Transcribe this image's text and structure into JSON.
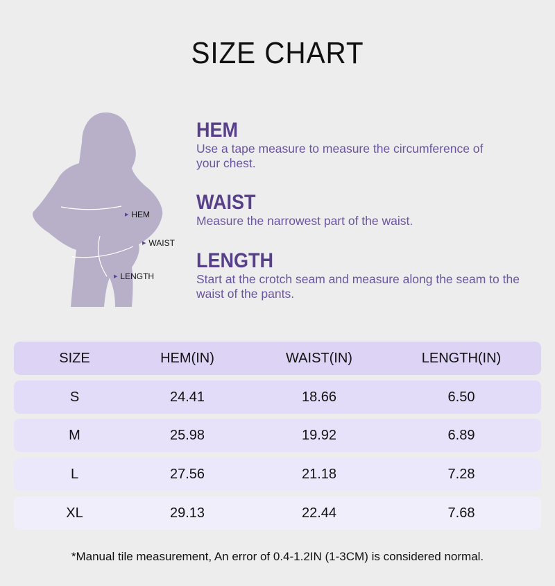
{
  "title": "SIZE CHART",
  "figure_labels": {
    "hem": "HEM",
    "waist": "WAIST",
    "length": "LENGTH"
  },
  "sections": [
    {
      "heading": "HEM",
      "text": "Use a tape measure to measure the circumference of your chest."
    },
    {
      "heading": "WAIST",
      "text": "Measure the narrowest part of the waist."
    },
    {
      "heading": "LENGTH",
      "text": "Start at the crotch seam and measure along the seam to the waist of the pants."
    }
  ],
  "table": {
    "headers": [
      "SIZE",
      "HEM(IN)",
      "WAIST(IN)",
      "LENGTH(IN)"
    ],
    "rows": [
      [
        "S",
        "24.41",
        "18.66",
        "6.50"
      ],
      [
        "M",
        "25.98",
        "19.92",
        "6.89"
      ],
      [
        "L",
        "27.56",
        "21.18",
        "7.28"
      ],
      [
        "XL",
        "29.13",
        "22.44",
        "7.68"
      ]
    ]
  },
  "note": "*Manual tile measurement, An error of 0.4-1.2IN (1-3CM) is considered normal.",
  "colors": {
    "background": "#ededed",
    "accent": "#574089",
    "silhouette": "#b7b0c8",
    "header_row": "#dcd3f5",
    "row_s": "#e2dcf8",
    "row_m": "#e7e2fa",
    "row_l": "#ece8fb",
    "row_xl": "#f1eefb"
  }
}
